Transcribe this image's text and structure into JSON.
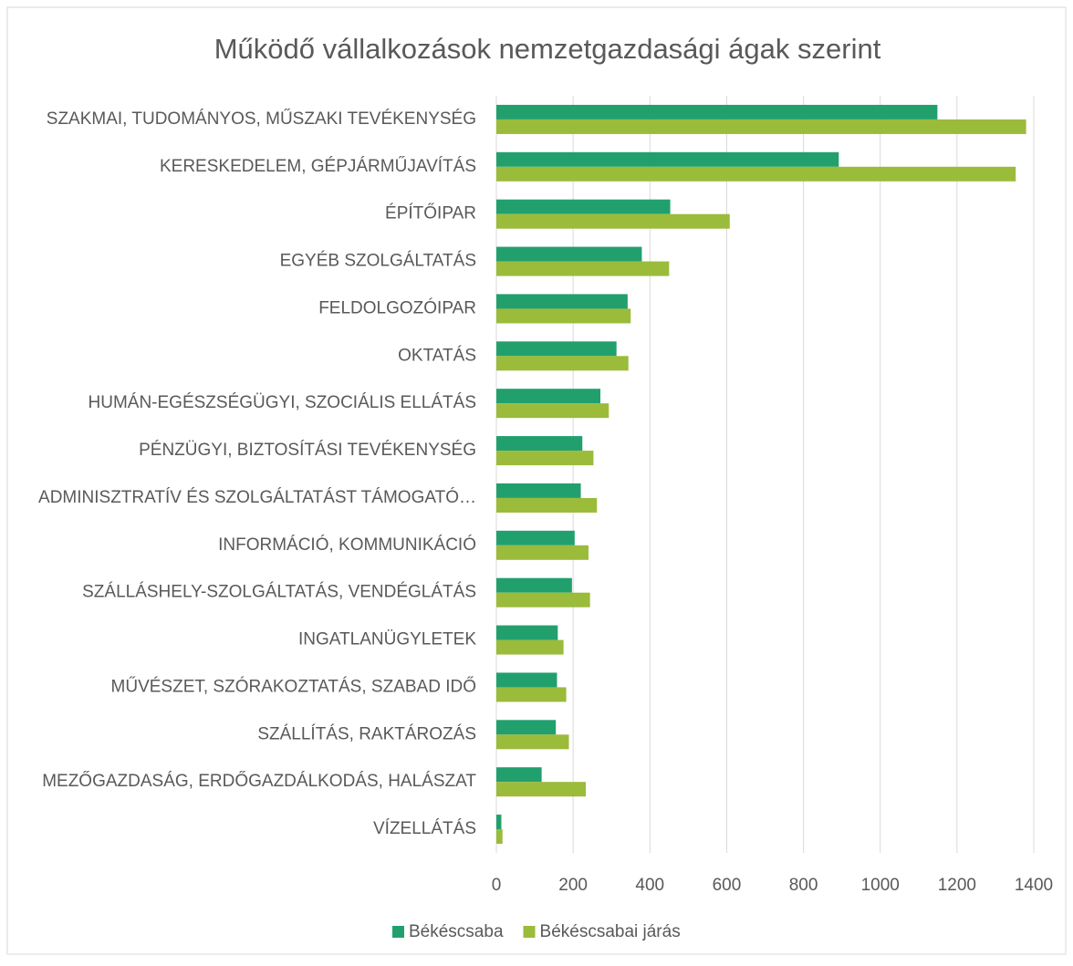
{
  "chart_data": {
    "type": "hbar",
    "title": "Működő vállalkozások nemzetgazdasági ágak szerint",
    "categories": [
      "SZAKMAI, TUDOMÁNYOS, MŰSZAKI TEVÉKENYSÉG",
      "KERESKEDELEM, GÉPJÁRMŰJAVÍTÁS",
      "ÉPÍTŐIPAR",
      "EGYÉB SZOLGÁLTATÁS",
      "FELDOLGOZÓIPAR",
      "OKTATÁS",
      "HUMÁN-EGÉSZSÉGÜGYI, SZOCIÁLIS ELLÁTÁS",
      "PÉNZÜGYI, BIZTOSÍTÁSI TEVÉKENYSÉG",
      "ADMINISZTRATÍV ÉS SZOLGÁLTATÁST TÁMOGATÓ…",
      "INFORMÁCIÓ, KOMMUNIKÁCIÓ",
      "SZÁLLÁSHELY-SZOLGÁLTATÁS, VENDÉGLÁTÁS",
      "INGATLANÜGYLETEK",
      "MŰVÉSZET, SZÓRAKOZTATÁS, SZABAD IDŐ",
      "SZÁLLÍTÁS, RAKTÁROZÁS",
      "MEZŐGAZDASÁG, ERDŐGAZDÁLKODÁS, HALÁSZAT",
      "VÍZELLÁTÁS"
    ],
    "series": [
      {
        "name": "Békéscsaba",
        "color": "#21a06e",
        "values": [
          1149,
          892,
          453,
          379,
          342,
          313,
          271,
          224,
          220,
          204,
          197,
          160,
          158,
          155,
          118,
          13
        ]
      },
      {
        "name": "Békéscsabai járás",
        "color": "#9bbb3b",
        "values": [
          1380,
          1353,
          608,
          450,
          350,
          344,
          293,
          253,
          262,
          240,
          244,
          175,
          182,
          189,
          233,
          16
        ]
      }
    ],
    "xlim": [
      0,
      1400
    ],
    "xticks": [
      0,
      200,
      400,
      600,
      800,
      1000,
      1200,
      1400
    ],
    "grid": true,
    "legend": "bottom"
  }
}
